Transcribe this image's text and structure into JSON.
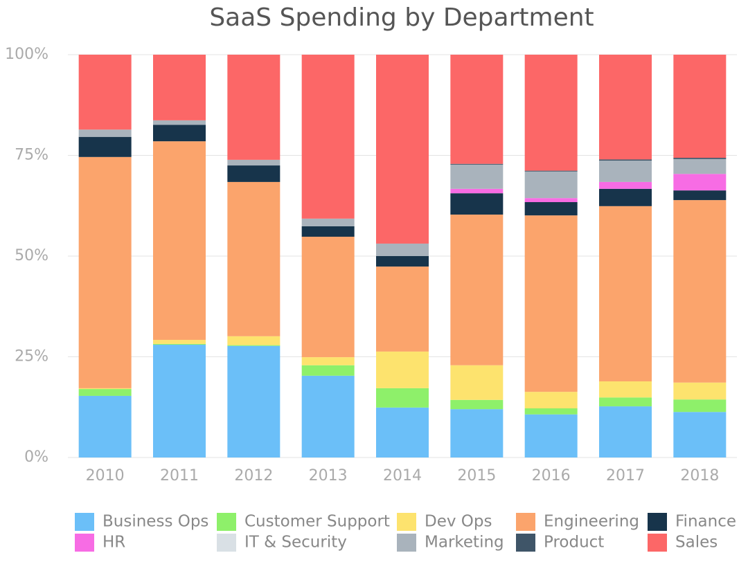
{
  "chart_data": {
    "type": "stacked_bar_percent",
    "title": "SaaS Spending by Department",
    "categories": [
      "2010",
      "2011",
      "2012",
      "2013",
      "2014",
      "2015",
      "2016",
      "2017",
      "2018"
    ],
    "ylim": [
      0,
      100
    ],
    "yticks": [
      {
        "value": 0,
        "label": "0%"
      },
      {
        "value": 25,
        "label": "25%"
      },
      {
        "value": 50,
        "label": "50%"
      },
      {
        "value": 75,
        "label": "75%"
      },
      {
        "value": 100,
        "label": "100%"
      }
    ],
    "grid": true,
    "series": [
      {
        "name": "Business Ops",
        "color": "#6bbff8",
        "values": [
          15.3,
          28.0,
          27.7,
          20.3,
          12.4,
          12.0,
          10.7,
          12.7,
          11.3
        ]
      },
      {
        "name": "Customer Support",
        "color": "#8ef06a",
        "values": [
          1.7,
          0.2,
          0.2,
          2.6,
          4.8,
          2.3,
          1.5,
          2.2,
          3.1
        ]
      },
      {
        "name": "Dev Ops",
        "color": "#fde36e",
        "values": [
          0.2,
          1.0,
          2.2,
          2.0,
          9.1,
          8.6,
          4.1,
          4.0,
          4.2
        ]
      },
      {
        "name": "Engineering",
        "color": "#fba46c",
        "values": [
          57.4,
          49.3,
          38.3,
          29.9,
          21.1,
          37.4,
          43.8,
          43.5,
          45.3
        ]
      },
      {
        "name": "Finance",
        "color": "#17344b",
        "values": [
          5.0,
          4.1,
          4.1,
          2.6,
          2.6,
          5.3,
          3.3,
          4.3,
          2.4
        ]
      },
      {
        "name": "HR",
        "color": "#f76ce4",
        "values": [
          0,
          0,
          0,
          0,
          0,
          1.1,
          1.0,
          1.7,
          4.1
        ]
      },
      {
        "name": "IT & Security",
        "color": "#d9e0e5",
        "values": [
          0,
          0,
          0,
          0,
          0,
          0,
          0,
          0,
          0
        ]
      },
      {
        "name": "Marketing",
        "color": "#a9b3bc",
        "values": [
          1.8,
          1.1,
          1.4,
          1.9,
          3.1,
          6.0,
          6.6,
          5.3,
          3.7
        ]
      },
      {
        "name": "Product",
        "color": "#3f5568",
        "values": [
          0,
          0,
          0,
          0,
          0,
          0.2,
          0.2,
          0.3,
          0.3
        ]
      },
      {
        "name": "Sales",
        "color": "#fc6767",
        "values": [
          18.6,
          16.3,
          26.1,
          40.7,
          46.9,
          27.1,
          28.8,
          26.0,
          25.6
        ]
      }
    ]
  }
}
